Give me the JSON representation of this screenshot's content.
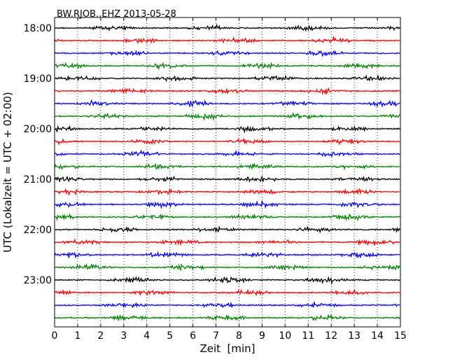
{
  "chart_data": {
    "type": "line",
    "title": "BW.RJOB..EHZ 2013-05-28",
    "xlabel": "Zeit  [min]",
    "ylabel": "UTC (Lokalzeit = UTC + 02:00)",
    "xlim": [
      0,
      15
    ],
    "x_ticks": [
      "0",
      "1",
      "2",
      "3",
      "4",
      "5",
      "6",
      "7",
      "8",
      "9",
      "10",
      "11",
      "12",
      "13",
      "14",
      "15"
    ],
    "y_ticks": [
      "18:00",
      "19:00",
      "20:00",
      "21:00",
      "22:00",
      "23:00"
    ],
    "grid": "vertical dotted",
    "trace_interval_min": 15,
    "trace_colors": [
      "#000000",
      "#ff0000",
      "#0000ff",
      "#008000"
    ],
    "traces": [
      {
        "start": "18:00"
      },
      {
        "start": "18:15"
      },
      {
        "start": "18:30"
      },
      {
        "start": "18:45"
      },
      {
        "start": "19:00"
      },
      {
        "start": "19:15"
      },
      {
        "start": "19:30"
      },
      {
        "start": "19:45"
      },
      {
        "start": "20:00"
      },
      {
        "start": "20:15"
      },
      {
        "start": "20:30"
      },
      {
        "start": "20:45"
      },
      {
        "start": "21:00"
      },
      {
        "start": "21:15"
      },
      {
        "start": "21:30"
      },
      {
        "start": "21:45"
      },
      {
        "start": "22:00"
      },
      {
        "start": "22:15"
      },
      {
        "start": "22:30"
      },
      {
        "start": "22:45"
      },
      {
        "start": "23:00"
      },
      {
        "start": "23:15"
      },
      {
        "start": "23:30"
      },
      {
        "start": "23:45"
      }
    ]
  }
}
